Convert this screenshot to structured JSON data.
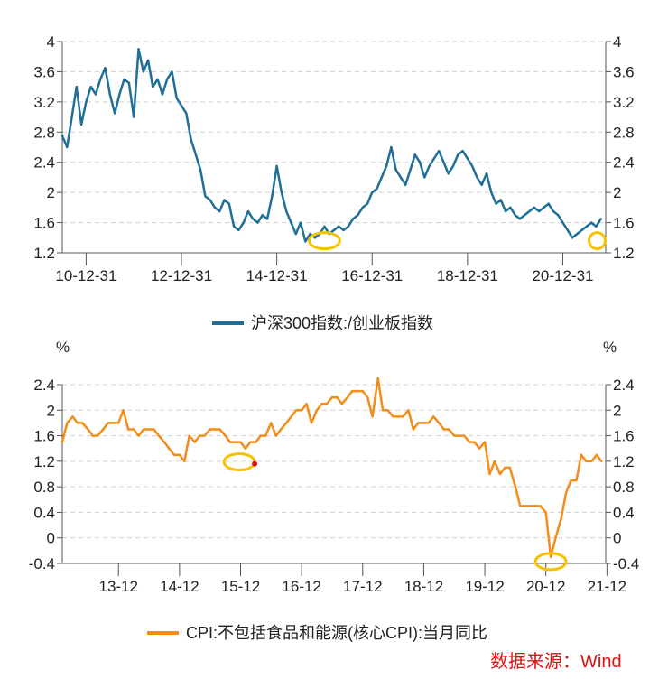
{
  "colors": {
    "line1": "#1f6f96",
    "line2": "#f28d1a",
    "highlight": "#f6c200",
    "dot": "#e01010",
    "source": "#e01010",
    "grid": "#d0d0d0",
    "axis": "#555555"
  },
  "source_text": "数据来源：Wind",
  "chart_data": [
    {
      "type": "line",
      "legend": "沪深300指数:/创业板指数",
      "ylim": [
        1.2,
        4.0
      ],
      "yticks": [
        "4",
        "3.6",
        "3.2",
        "2.8",
        "2.4",
        "2",
        "1.6",
        "1.2"
      ],
      "ytick_values": [
        4.0,
        3.6,
        3.2,
        2.8,
        2.4,
        2.0,
        1.6,
        1.2
      ],
      "xlim": [
        2010.5,
        2021.9
      ],
      "xticks": [
        "10-12-31",
        "12-12-31",
        "14-12-31",
        "16-12-31",
        "18-12-31",
        "20-12-31"
      ],
      "xtick_values": [
        2011.0,
        2013.0,
        2015.0,
        2017.0,
        2019.0,
        2021.0
      ],
      "x": [
        2010.5,
        2010.6,
        2010.7,
        2010.8,
        2010.9,
        2011.0,
        2011.1,
        2011.2,
        2011.3,
        2011.4,
        2011.5,
        2011.6,
        2011.7,
        2011.8,
        2011.9,
        2012.0,
        2012.1,
        2012.2,
        2012.3,
        2012.4,
        2012.5,
        2012.6,
        2012.7,
        2012.8,
        2012.9,
        2013.0,
        2013.1,
        2013.2,
        2013.3,
        2013.4,
        2013.5,
        2013.6,
        2013.7,
        2013.8,
        2013.9,
        2014.0,
        2014.1,
        2014.2,
        2014.3,
        2014.4,
        2014.5,
        2014.6,
        2014.7,
        2014.8,
        2014.9,
        2015.0,
        2015.1,
        2015.2,
        2015.3,
        2015.4,
        2015.5,
        2015.6,
        2015.7,
        2015.8,
        2015.9,
        2016.0,
        2016.1,
        2016.2,
        2016.3,
        2016.4,
        2016.5,
        2016.6,
        2016.7,
        2016.8,
        2016.9,
        2017.0,
        2017.1,
        2017.2,
        2017.3,
        2017.4,
        2017.5,
        2017.6,
        2017.7,
        2017.8,
        2017.9,
        2018.0,
        2018.1,
        2018.2,
        2018.3,
        2018.4,
        2018.5,
        2018.6,
        2018.7,
        2018.8,
        2018.9,
        2019.0,
        2019.1,
        2019.2,
        2019.3,
        2019.4,
        2019.5,
        2019.6,
        2019.7,
        2019.8,
        2019.9,
        2020.0,
        2020.1,
        2020.2,
        2020.3,
        2020.4,
        2020.5,
        2020.6,
        2020.7,
        2020.8,
        2020.9,
        2021.0,
        2021.1,
        2021.2,
        2021.3,
        2021.4,
        2021.5,
        2021.6,
        2021.7,
        2021.8
      ],
      "values": [
        2.75,
        2.6,
        3.0,
        3.4,
        2.9,
        3.2,
        3.4,
        3.3,
        3.5,
        3.65,
        3.3,
        3.05,
        3.3,
        3.5,
        3.45,
        3.0,
        3.9,
        3.6,
        3.75,
        3.4,
        3.5,
        3.3,
        3.5,
        3.6,
        3.25,
        3.15,
        3.05,
        2.7,
        2.5,
        2.3,
        1.95,
        1.9,
        1.8,
        1.75,
        1.9,
        1.85,
        1.55,
        1.5,
        1.6,
        1.75,
        1.65,
        1.6,
        1.7,
        1.65,
        1.95,
        2.35,
        2.0,
        1.75,
        1.6,
        1.45,
        1.6,
        1.35,
        1.45,
        1.4,
        1.45,
        1.55,
        1.45,
        1.5,
        1.55,
        1.5,
        1.55,
        1.65,
        1.7,
        1.8,
        1.85,
        2.0,
        2.05,
        2.2,
        2.35,
        2.6,
        2.3,
        2.2,
        2.1,
        2.3,
        2.5,
        2.4,
        2.2,
        2.35,
        2.45,
        2.55,
        2.4,
        2.25,
        2.35,
        2.5,
        2.55,
        2.45,
        2.35,
        2.2,
        2.1,
        2.25,
        2.0,
        1.85,
        1.9,
        1.75,
        1.8,
        1.7,
        1.65,
        1.7,
        1.75,
        1.8,
        1.75,
        1.8,
        1.85,
        1.75,
        1.7,
        1.6,
        1.5,
        1.4,
        1.45,
        1.5,
        1.55,
        1.6,
        1.55,
        1.65
      ],
      "highlights": [
        {
          "x": 2016.0,
          "y": 1.36
        },
        {
          "x": 2021.72,
          "y": 1.36
        }
      ]
    },
    {
      "type": "line",
      "legend": "CPI:不包括食品和能源(核心CPI):当月同比",
      "unit": "%",
      "ylim": [
        -0.4,
        2.4
      ],
      "yticks": [
        "2.4",
        "2",
        "1.6",
        "1.2",
        "0.8",
        "0.4",
        "0",
        "-0.4"
      ],
      "ytick_values": [
        2.4,
        2.0,
        1.6,
        1.2,
        0.8,
        0.4,
        0.0,
        -0.4
      ],
      "xlim": [
        2013.0,
        2021.9
      ],
      "xticks": [
        "13-12",
        "14-12",
        "15-12",
        "16-12",
        "17-12",
        "18-12",
        "19-12",
        "20-12",
        "21-12"
      ],
      "xtick_values": [
        2013.92,
        2014.92,
        2015.92,
        2016.92,
        2017.92,
        2018.92,
        2019.92,
        2020.92,
        2021.92
      ],
      "x": [
        2013.0,
        2013.08,
        2013.17,
        2013.25,
        2013.33,
        2013.42,
        2013.5,
        2013.58,
        2013.67,
        2013.75,
        2013.83,
        2013.92,
        2014.0,
        2014.08,
        2014.17,
        2014.25,
        2014.33,
        2014.42,
        2014.5,
        2014.58,
        2014.67,
        2014.75,
        2014.83,
        2014.92,
        2015.0,
        2015.08,
        2015.17,
        2015.25,
        2015.33,
        2015.42,
        2015.5,
        2015.58,
        2015.67,
        2015.75,
        2015.83,
        2015.92,
        2016.0,
        2016.08,
        2016.17,
        2016.25,
        2016.33,
        2016.42,
        2016.5,
        2016.58,
        2016.67,
        2016.75,
        2016.83,
        2016.92,
        2017.0,
        2017.08,
        2017.17,
        2017.25,
        2017.33,
        2017.42,
        2017.5,
        2017.58,
        2017.67,
        2017.75,
        2017.83,
        2017.92,
        2018.0,
        2018.08,
        2018.17,
        2018.25,
        2018.33,
        2018.42,
        2018.5,
        2018.58,
        2018.67,
        2018.75,
        2018.83,
        2018.92,
        2019.0,
        2019.08,
        2019.17,
        2019.25,
        2019.33,
        2019.42,
        2019.5,
        2019.58,
        2019.67,
        2019.75,
        2019.83,
        2019.92,
        2020.0,
        2020.08,
        2020.17,
        2020.25,
        2020.33,
        2020.42,
        2020.5,
        2020.58,
        2020.67,
        2020.75,
        2020.83,
        2020.92,
        2021.0,
        2021.08,
        2021.17,
        2021.25,
        2021.33,
        2021.42,
        2021.5,
        2021.58,
        2021.67,
        2021.75,
        2021.83
      ],
      "values": [
        1.5,
        1.8,
        1.9,
        1.8,
        1.8,
        1.7,
        1.6,
        1.6,
        1.7,
        1.8,
        1.8,
        1.8,
        2.0,
        1.7,
        1.7,
        1.6,
        1.7,
        1.7,
        1.7,
        1.6,
        1.5,
        1.4,
        1.3,
        1.3,
        1.2,
        1.6,
        1.5,
        1.6,
        1.6,
        1.7,
        1.7,
        1.7,
        1.6,
        1.5,
        1.5,
        1.5,
        1.4,
        1.5,
        1.5,
        1.6,
        1.6,
        1.8,
        1.6,
        1.7,
        1.8,
        1.9,
        2.0,
        2.0,
        2.1,
        1.8,
        2.0,
        2.1,
        2.1,
        2.2,
        2.2,
        2.1,
        2.2,
        2.3,
        2.3,
        2.3,
        2.2,
        1.9,
        2.5,
        2.0,
        2.0,
        1.9,
        1.9,
        1.9,
        2.0,
        1.7,
        1.8,
        1.8,
        1.8,
        1.9,
        1.8,
        1.7,
        1.7,
        1.6,
        1.6,
        1.6,
        1.5,
        1.5,
        1.4,
        1.5,
        1.0,
        1.2,
        1.0,
        1.1,
        1.1,
        0.8,
        0.5,
        0.5,
        0.5,
        0.5,
        0.5,
        0.4,
        -0.3,
        0.0,
        0.3,
        0.7,
        0.9,
        0.9,
        1.3,
        1.2,
        1.2,
        1.3,
        1.2
      ],
      "highlights": [
        {
          "x": 2015.9,
          "y": 1.19
        },
        {
          "x": 2021.0,
          "y": -0.37
        }
      ],
      "marker": {
        "x": 2016.15,
        "y": 1.16
      }
    }
  ]
}
